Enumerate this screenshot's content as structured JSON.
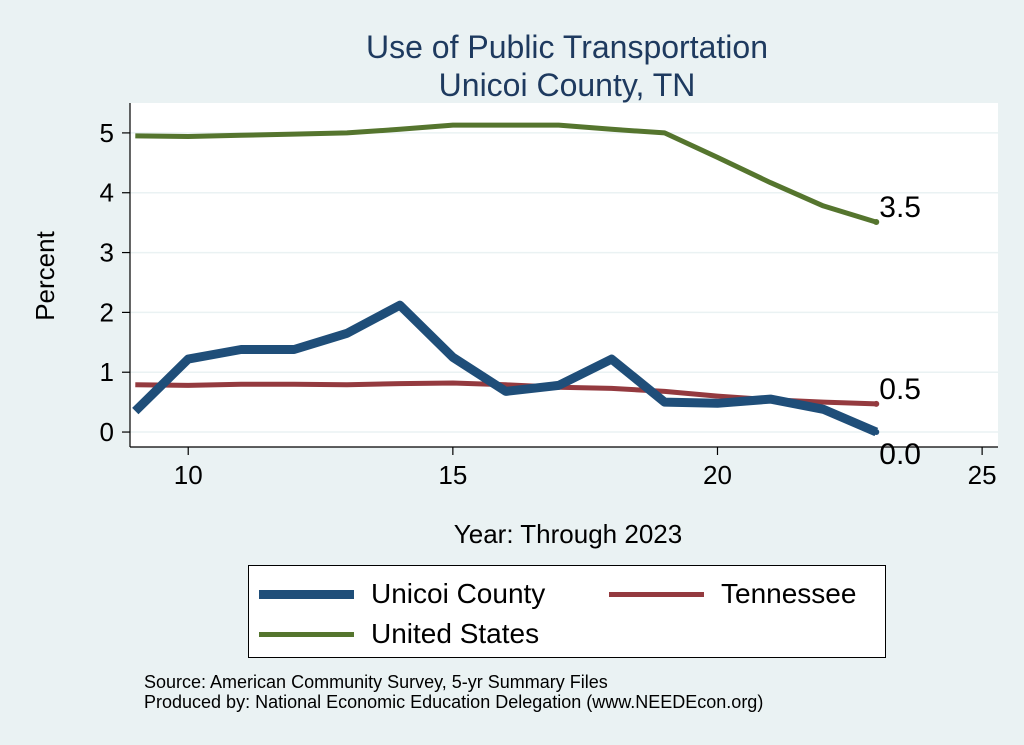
{
  "chart_data": {
    "type": "line",
    "title": [
      "Use of Public Transportation",
      "Unicoi County, TN"
    ],
    "xlabel": "Year: Through 2023",
    "ylabel": "Percent",
    "xlim": [
      8.9,
      25.3
    ],
    "ylim": [
      -0.25,
      5.5
    ],
    "xticks": [
      10,
      15,
      20,
      25
    ],
    "yticks": [
      0,
      1,
      2,
      3,
      4,
      5
    ],
    "grid": true,
    "legend_position": "bottom",
    "series": [
      {
        "name": "Unicoi County",
        "color": "#1f4e79",
        "x": [
          9,
          10,
          11,
          12,
          13,
          14,
          15,
          16,
          17,
          18,
          19,
          20,
          21,
          22,
          23
        ],
        "y": [
          0.35,
          1.22,
          1.38,
          1.38,
          1.65,
          2.12,
          1.25,
          0.68,
          0.78,
          1.22,
          0.5,
          0.48,
          0.55,
          0.38,
          0.0
        ],
        "end_label": "0.0"
      },
      {
        "name": "Tennessee",
        "color": "#943a3f",
        "x": [
          9,
          10,
          11,
          12,
          13,
          14,
          15,
          16,
          17,
          18,
          19,
          20,
          21,
          22,
          23
        ],
        "y": [
          0.79,
          0.78,
          0.8,
          0.8,
          0.79,
          0.81,
          0.82,
          0.79,
          0.75,
          0.73,
          0.68,
          0.6,
          0.54,
          0.5,
          0.47
        ],
        "end_label": "0.5"
      },
      {
        "name": "United States",
        "color": "#55752e",
        "x": [
          9,
          10,
          11,
          12,
          13,
          14,
          15,
          16,
          17,
          18,
          19,
          20,
          21,
          22,
          23
        ],
        "y": [
          4.95,
          4.94,
          4.96,
          4.98,
          5.0,
          5.06,
          5.13,
          5.13,
          5.13,
          5.06,
          5.0,
          4.59,
          4.17,
          3.78,
          3.51
        ],
        "end_label": "3.5"
      }
    ]
  },
  "source_lines": [
    "Source: American Community Survey, 5-yr Summary Files",
    "Produced by: National Economic Education Delegation (www.NEEDEcon.org)"
  ]
}
